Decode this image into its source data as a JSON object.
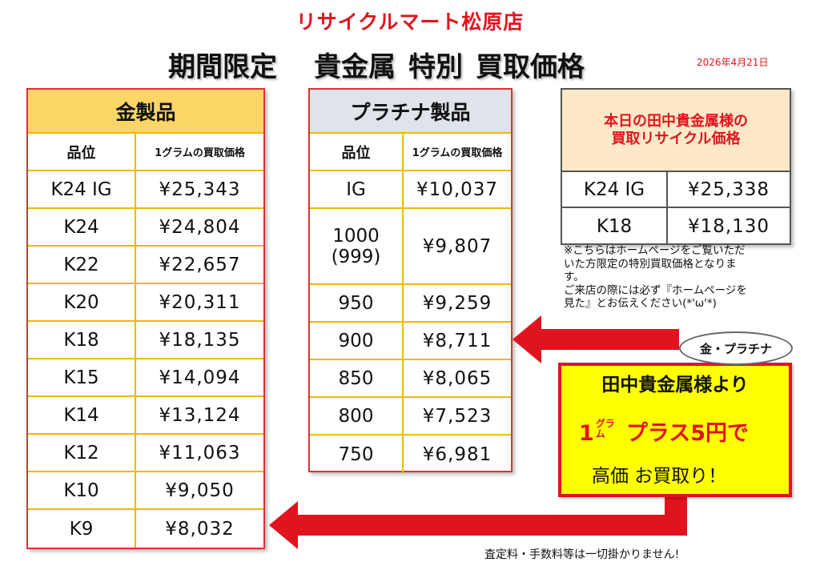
{
  "store_name": "リサイクルマート松原店",
  "heading": {
    "part1": "期間限定",
    "part2": "貴金属",
    "part3": "特別",
    "part4": "買取価格"
  },
  "date": "2026年4月21日",
  "gold_table": {
    "title": "金製品",
    "col_grade": "品位",
    "col_price": "1グラムの買取価格",
    "rows": [
      {
        "grade": "K24 IG",
        "price": "¥25,343"
      },
      {
        "grade": "K24",
        "price": "¥24,804"
      },
      {
        "grade": "K22",
        "price": "¥22,657"
      },
      {
        "grade": "K20",
        "price": "¥20,311"
      },
      {
        "grade": "K18",
        "price": "¥18,135"
      },
      {
        "grade": "K15",
        "price": "¥14,094"
      },
      {
        "grade": "K14",
        "price": "¥13,124"
      },
      {
        "grade": "K12",
        "price": "¥11,063"
      },
      {
        "grade": "K10",
        "price": "¥9,050"
      },
      {
        "grade": "K9",
        "price": "¥8,032"
      }
    ]
  },
  "platinum_table": {
    "title": "プラチナ製品",
    "col_grade": "品位",
    "col_price": "1グラムの買取価格",
    "rows": [
      {
        "grade": "IG",
        "price": "¥10,037"
      },
      {
        "grade": "1000",
        "grade2": "(999)",
        "price": "¥9,807"
      },
      {
        "grade": "950",
        "price": "¥9,259"
      },
      {
        "grade": "900",
        "price": "¥8,711"
      },
      {
        "grade": "850",
        "price": "¥8,065"
      },
      {
        "grade": "800",
        "price": "¥7,523"
      },
      {
        "grade": "750",
        "price": "¥6,981"
      }
    ]
  },
  "tanaka_box": {
    "title_line1": "本日の田中貴金属様の",
    "title_line2": "買取リサイクル価格",
    "rows": [
      {
        "grade": "K24 IG",
        "price": "¥25,338"
      },
      {
        "grade": "K18",
        "price": "¥18,130"
      }
    ]
  },
  "note": {
    "line1": "※こちらはホームページをご覧いただ",
    "line2": "いた方限定の特別買取価格となりま",
    "line3": "す。",
    "line4": "ご来店の際には必ず『ホームページを",
    "line5": "見た』とお伝えください(*'ω'*)"
  },
  "bubble_label": "金・プラチナ",
  "promo": {
    "line1": "田中貴金属様より",
    "amount": "1",
    "unit_top": "グラ",
    "unit_bottom": "ム",
    "plus": "プラス5円で",
    "line3": "高価 お買取り！"
  },
  "footer": "査定料・手数料等は一切掛かりません!",
  "colors": {
    "accent_red": "#e0141e",
    "gold_header": "#fcd567",
    "platinum_header": "#dfe3ea",
    "promo_yellow": "#ffff00",
    "tanaka_header": "#fde9c7"
  }
}
